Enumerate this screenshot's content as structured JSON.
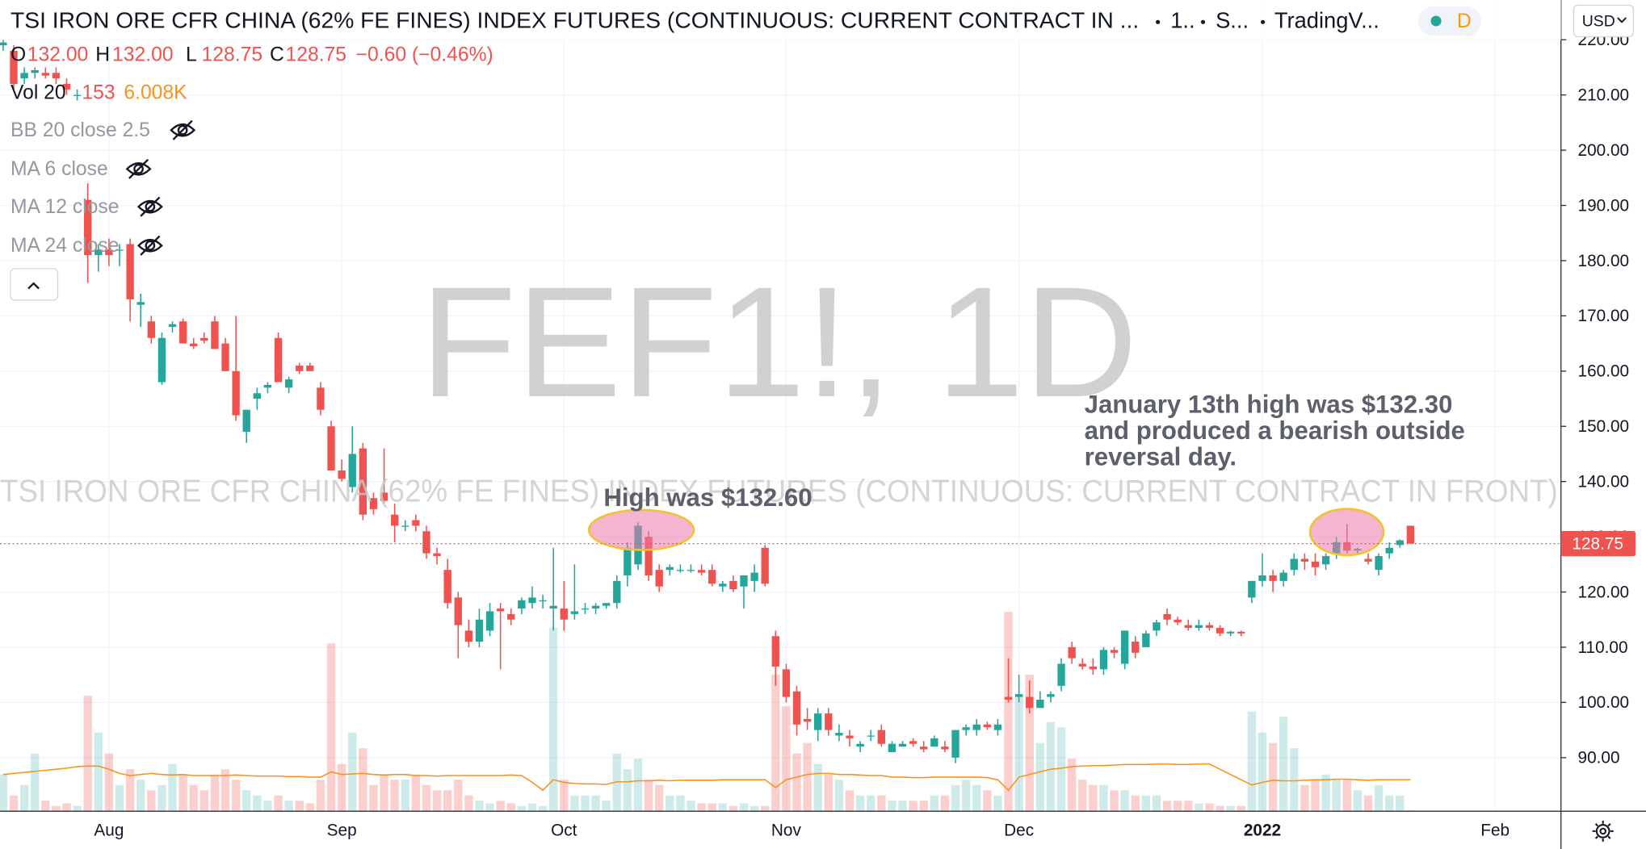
{
  "chart_data": {
    "type": "candlestick",
    "title": "TSI IRON ORE CFR CHINA (62% FE FINES) INDEX FUTURES (CONTINUOUS: CURRENT CONTRACT IN ...",
    "header_items": [
      "1..",
      "S...",
      "TradingV..."
    ],
    "badge": "D",
    "currency": "USD",
    "legend": {
      "open_key": "O",
      "open": "132.00",
      "high_key": "H",
      "high": "132.00",
      "low_key": "L",
      "low": "128.75",
      "close_key": "C",
      "close": "128.75",
      "change": "−0.60 (−0.46%)"
    },
    "volume_legend": {
      "name": "Vol 20",
      "value": "153",
      "ma": "6.008K"
    },
    "indicators": [
      "BB 20 close 2.5",
      "MA 6 close",
      "MA 12 close",
      "MA 24 close"
    ],
    "watermark": "FEF1!, 1D",
    "watermark_subtitle": "TSI IRON ORE CFR CHINA (62% FE FINES) INDEX FUTURES (CONTINUOUS: CURRENT CONTRACT IN FRONT)",
    "annotations": [
      {
        "lines": [
          "High was $132.60"
        ]
      },
      {
        "lines": [
          "January 13th high was $132.30",
          "and produced a bearish outside",
          "reversal day."
        ]
      }
    ],
    "up_color": "#26a69a",
    "down_color": "#ef5350",
    "volume_up_color": "rgba(38,166,154,0.22)",
    "volume_down_color": "rgba(239,83,80,0.28)",
    "volume_ma_color": "#f7931e",
    "grid": true,
    "ylim": [
      80.3,
      227.2
    ],
    "yticks": [
      {
        "value": 90,
        "label": "90.00"
      },
      {
        "value": 100,
        "label": "100.00"
      },
      {
        "value": 110,
        "label": "110.00"
      },
      {
        "value": 120,
        "label": "120.00"
      },
      {
        "value": 130,
        "label": "130.00"
      },
      {
        "value": 140,
        "label": "140.00"
      },
      {
        "value": 150,
        "label": "150.00"
      },
      {
        "value": 160,
        "label": "160.00"
      },
      {
        "value": 170,
        "label": "170.00"
      },
      {
        "value": 180,
        "label": "180.00"
      },
      {
        "value": 190,
        "label": "190.00"
      },
      {
        "value": 200,
        "label": "200.00"
      },
      {
        "value": 210,
        "label": "210.00"
      },
      {
        "value": 220,
        "label": "220.00"
      }
    ],
    "volume_lim": [
      0,
      154600
    ],
    "categories": [
      null,
      null,
      null,
      null,
      null,
      null,
      null,
      null,
      null,
      null,
      "Aug",
      null,
      null,
      null,
      null,
      null,
      null,
      null,
      null,
      null,
      null,
      null,
      null,
      null,
      null,
      null,
      null,
      null,
      null,
      null,
      null,
      null,
      "Sep",
      null,
      null,
      null,
      null,
      null,
      null,
      null,
      null,
      null,
      null,
      null,
      null,
      null,
      null,
      null,
      null,
      null,
      null,
      null,
      null,
      "Oct",
      null,
      null,
      null,
      null,
      null,
      null,
      null,
      null,
      null,
      null,
      null,
      null,
      null,
      null,
      null,
      null,
      null,
      null,
      null,
      null,
      "Nov",
      null,
      null,
      null,
      null,
      null,
      null,
      null,
      null,
      null,
      null,
      null,
      null,
      null,
      null,
      null,
      null,
      null,
      null,
      null,
      null,
      null,
      "Dec",
      null,
      null,
      null,
      null,
      null,
      null,
      null,
      null,
      null,
      null,
      null,
      null,
      null,
      null,
      null,
      null,
      null,
      null,
      null,
      null,
      null,
      null,
      "2022",
      null,
      null,
      null,
      null,
      null,
      null,
      null,
      null,
      null,
      null,
      null,
      null,
      null,
      null,
      null,
      null,
      null,
      null,
      null,
      null,
      null,
      "Feb"
    ],
    "ohlc": [
      [
        219,
        220,
        218,
        219.5
      ],
      [
        218,
        219,
        211,
        212
      ],
      [
        213,
        215,
        212,
        214
      ],
      [
        214,
        215,
        213,
        214.5
      ],
      [
        214,
        215,
        213,
        213.5
      ],
      [
        214,
        215,
        212,
        213
      ],
      [
        212,
        213,
        210,
        211
      ],
      [
        210,
        211,
        209,
        210
      ],
      [
        191,
        194,
        176,
        181
      ],
      [
        181,
        183,
        178,
        182
      ],
      [
        182,
        184,
        179,
        181
      ],
      [
        182,
        183,
        179,
        182
      ],
      [
        183,
        184,
        169,
        173
      ],
      [
        172,
        174,
        168,
        172.5
      ],
      [
        169,
        170,
        165,
        166
      ],
      [
        158,
        167,
        157.5,
        166
      ],
      [
        168,
        169,
        167,
        168.5
      ],
      [
        169,
        169.5,
        165,
        165
      ],
      [
        165,
        166,
        164,
        164.5
      ],
      [
        166,
        167,
        165,
        165.5
      ],
      [
        169,
        170,
        164,
        164
      ],
      [
        165,
        166,
        160,
        160
      ],
      [
        160,
        170,
        151,
        152
      ],
      [
        149,
        153,
        147,
        153
      ],
      [
        155,
        157,
        153,
        156
      ],
      [
        157,
        158,
        156,
        157.5
      ],
      [
        166,
        167,
        158,
        158
      ],
      [
        157,
        159,
        156,
        158.5
      ],
      [
        161,
        161.5,
        159.5,
        160
      ],
      [
        161,
        161.5,
        160,
        160
      ],
      [
        157,
        158,
        152,
        153
      ],
      [
        150,
        151,
        142,
        142
      ],
      [
        142,
        144,
        140,
        140.5
      ],
      [
        139,
        150,
        138,
        145
      ],
      [
        146,
        147,
        133,
        134
      ],
      [
        137,
        138,
        134,
        135
      ],
      [
        138,
        146,
        136,
        136.5
      ],
      [
        134,
        136,
        129,
        132
      ],
      [
        132,
        133,
        131,
        132
      ],
      [
        133,
        134,
        131,
        132
      ],
      [
        131,
        132,
        126,
        127
      ],
      [
        127,
        128,
        125,
        126.5
      ],
      [
        124,
        126,
        117,
        118
      ],
      [
        119,
        120,
        108,
        114
      ],
      [
        113,
        115,
        110,
        111
      ],
      [
        111,
        117,
        110,
        115
      ],
      [
        113,
        118,
        112,
        116.5
      ],
      [
        117,
        118,
        106,
        116.5
      ],
      [
        116,
        117,
        114,
        115
      ],
      [
        117,
        119,
        116,
        118.5
      ],
      [
        118,
        121,
        117,
        119
      ],
      [
        118.5,
        119.5,
        117,
        118.5
      ],
      [
        117,
        128,
        113,
        117.5
      ],
      [
        117,
        122,
        113,
        115
      ],
      [
        116,
        125,
        115,
        116.5
      ],
      [
        117,
        118,
        116,
        117
      ],
      [
        117,
        118,
        116,
        117.5
      ],
      [
        117.5,
        118,
        117,
        118
      ],
      [
        118,
        123,
        117,
        122
      ],
      [
        123,
        129,
        121,
        128
      ],
      [
        125,
        132.6,
        124,
        132
      ],
      [
        130,
        131,
        122,
        123
      ],
      [
        124,
        125,
        120,
        121
      ],
      [
        124,
        125,
        123,
        124.5
      ],
      [
        124,
        125,
        123.5,
        124
      ],
      [
        124,
        125,
        123.5,
        124
      ],
      [
        124,
        125,
        123,
        123.5
      ],
      [
        124,
        125,
        121,
        121.5
      ],
      [
        121,
        122,
        120,
        121.5
      ],
      [
        122,
        123,
        120,
        120.5
      ],
      [
        121,
        123,
        117,
        123
      ],
      [
        122,
        125,
        120,
        123.5
      ],
      [
        128,
        128.5,
        121,
        121.5
      ],
      [
        112,
        113,
        103,
        106.5
      ],
      [
        106,
        107,
        100,
        101
      ],
      [
        102,
        103,
        94,
        96
      ],
      [
        97,
        99,
        95,
        96.5
      ],
      [
        95,
        99,
        93,
        98
      ],
      [
        98,
        99,
        94,
        95
      ],
      [
        94,
        96,
        93,
        94.5
      ],
      [
        94,
        95,
        92,
        93.5
      ],
      [
        92,
        93,
        91,
        92.5
      ],
      [
        94,
        95,
        93,
        94
      ],
      [
        95,
        96,
        92,
        92.5
      ],
      [
        91,
        93,
        91,
        92.5
      ],
      [
        92,
        93,
        92,
        92.5
      ],
      [
        93,
        93.5,
        92,
        92.5
      ],
      [
        92,
        93,
        91,
        91.5
      ],
      [
        92,
        94,
        92,
        93.5
      ],
      [
        92,
        93,
        91,
        91.5
      ],
      [
        90,
        95,
        89,
        95
      ],
      [
        95,
        96,
        94,
        95.5
      ],
      [
        95,
        97,
        94,
        96
      ],
      [
        96,
        96.5,
        95,
        95.5
      ],
      [
        95,
        97,
        94,
        96
      ],
      [
        101,
        108,
        100,
        100.5
      ],
      [
        101,
        105,
        100,
        101.5
      ],
      [
        101,
        104,
        98,
        99
      ],
      [
        99,
        102,
        99,
        100.5
      ],
      [
        101,
        102,
        100,
        101.5
      ],
      [
        103,
        108,
        102,
        107
      ],
      [
        110,
        111,
        107,
        108
      ],
      [
        107,
        108,
        106,
        106.5
      ],
      [
        106.5,
        108,
        105,
        106
      ],
      [
        106,
        110,
        105,
        109.5
      ],
      [
        109.5,
        110,
        108,
        109
      ],
      [
        107,
        113,
        106,
        113
      ],
      [
        111,
        112,
        108,
        109
      ],
      [
        110,
        113,
        110,
        112.5
      ],
      [
        113,
        115,
        112,
        114.5
      ],
      [
        116,
        117,
        114,
        115
      ],
      [
        115,
        115.5,
        114,
        114.5
      ],
      [
        114,
        115,
        113,
        113.5
      ],
      [
        113.5,
        115,
        113,
        114
      ],
      [
        114,
        114.5,
        113,
        113.5
      ],
      [
        113.5,
        114,
        112,
        112.5
      ],
      [
        112.5,
        113,
        112,
        112.8
      ],
      [
        112.8,
        113,
        112,
        112.5
      ],
      [
        119,
        122,
        118,
        122
      ],
      [
        122,
        127,
        121,
        123
      ],
      [
        123,
        124,
        120,
        122
      ],
      [
        122,
        124,
        121,
        123.5
      ],
      [
        124,
        127,
        123,
        126
      ],
      [
        126,
        127,
        124,
        125.5
      ],
      [
        125.5,
        127,
        123,
        124.5
      ],
      [
        125,
        127,
        124,
        126.5
      ],
      [
        127,
        130,
        126,
        129
      ],
      [
        129,
        132.3,
        127,
        127.5
      ],
      [
        127.5,
        128,
        127,
        127.8
      ],
      [
        126,
        127,
        125,
        125.5
      ],
      [
        124,
        127,
        123,
        126.5
      ],
      [
        127,
        129,
        126,
        128
      ],
      [
        128.5,
        129.5,
        128,
        129.35
      ],
      [
        132,
        132,
        128.75,
        128.75
      ],
      null,
      null,
      null,
      null,
      null,
      null,
      null,
      null
    ],
    "volume": [
      7000,
      3000,
      5000,
      11000,
      2000,
      1000,
      1500,
      1000,
      22000,
      15000,
      11000,
      5000,
      8000,
      6000,
      4000,
      5000,
      9000,
      7000,
      5000,
      4000,
      7000,
      8000,
      6000,
      4000,
      3000,
      2000,
      3000,
      2000,
      2000,
      1500,
      6000,
      32000,
      9000,
      15000,
      12000,
      5000,
      7000,
      6000,
      6000,
      7000,
      5000,
      4000,
      4000,
      6000,
      3000,
      2000,
      1500,
      2000,
      1500,
      1000,
      1500,
      1000,
      35000,
      6000,
      3000,
      3000,
      3000,
      2000,
      11000,
      8000,
      10000,
      6000,
      5000,
      3000,
      3000,
      2000,
      1500,
      1500,
      1500,
      1000,
      1500,
      1000,
      1000,
      26000,
      20000,
      11000,
      13000,
      9000,
      7000,
      6000,
      4000,
      3000,
      3000,
      3000,
      2000,
      2000,
      2000,
      2000,
      3000,
      3000,
      5000,
      6000,
      5000,
      4000,
      3000,
      38000,
      22000,
      26000,
      13000,
      17000,
      16000,
      10000,
      6000,
      5000,
      5000,
      4000,
      4000,
      3000,
      3000,
      3000,
      2000,
      2000,
      2000,
      1500,
      1500,
      1000,
      1000,
      1000,
      19000,
      15000,
      13000,
      18000,
      12000,
      5000,
      6000,
      7000,
      6000,
      6000,
      4000,
      3000,
      5000,
      3000,
      3000,
      153,
      null,
      null,
      null,
      null,
      null,
      null,
      null,
      null
    ],
    "volume_ma": [
      7000,
      7200,
      7400,
      7600,
      7800,
      8000,
      8200,
      8500,
      8600,
      8600,
      8000,
      7200,
      6800,
      7000,
      7200,
      7000,
      6900,
      7000,
      6800,
      6800,
      6800,
      6800,
      6900,
      6800,
      6700,
      6700,
      6700,
      6600,
      6600,
      6500,
      6500,
      7500,
      7000,
      7100,
      7200,
      7000,
      6900,
      7000,
      7000,
      6800,
      6800,
      6700,
      6800,
      6800,
      6800,
      6800,
      6800,
      6800,
      6900,
      6800,
      5500,
      4000,
      6000,
      5500,
      5300,
      5200,
      5200,
      5100,
      5600,
      5600,
      5800,
      5800,
      5900,
      5800,
      5900,
      5900,
      5900,
      5900,
      6000,
      6000,
      6000,
      6000,
      6000,
      4500,
      6000,
      6500,
      7000,
      7200,
      7200,
      7000,
      7000,
      6900,
      6800,
      6800,
      6500,
      6500,
      6400,
      6400,
      6500,
      6500,
      6500,
      6500,
      6500,
      6400,
      6000,
      4000,
      6500,
      7000,
      7500,
      8000,
      8200,
      8500,
      8600,
      8700,
      8700,
      8800,
      8900,
      8900,
      8900,
      9000,
      9000,
      8900,
      8900,
      9000,
      9000,
      8000,
      7000,
      6000,
      5000,
      5500,
      5900,
      5800,
      5800,
      5900,
      6000,
      6000,
      6100,
      6100,
      6000,
      5900,
      6000,
      6008,
      6008,
      6008,
      null,
      null,
      null,
      null,
      null,
      null,
      null,
      null
    ]
  }
}
